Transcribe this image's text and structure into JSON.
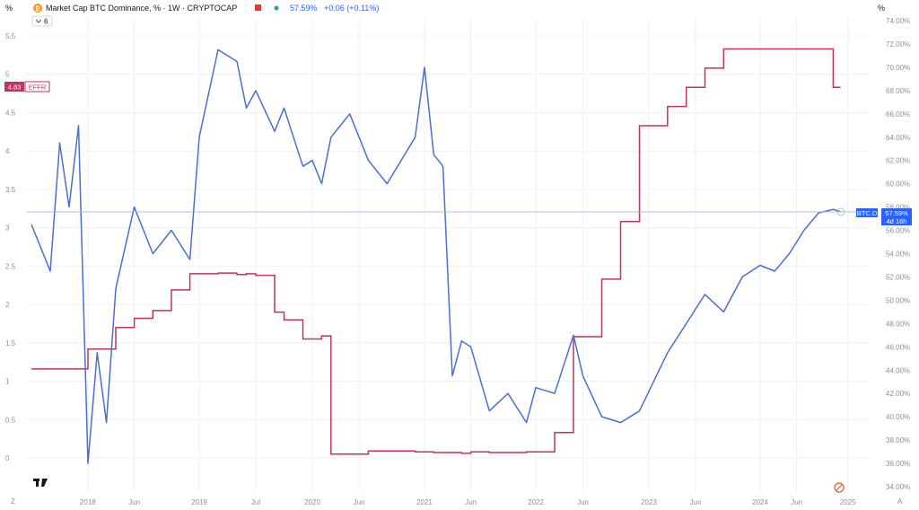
{
  "header": {
    "left_unit": "%",
    "right_unit": "%",
    "title": "Market Cap BTC Dominance, % · 1W · CRYPTOCAP",
    "value": "57.59%",
    "change": "+0.06 (+0.11%)",
    "indicator_count": "6",
    "brand_icon": "bitcoin-coin-icon"
  },
  "colors": {
    "btc": "#4a6fd1",
    "effr": "#c2345a",
    "tag_bg": "#2962ff",
    "grid": "#eef0f4",
    "accent": "#e65a24"
  },
  "tags": {
    "effr_value": "4.83",
    "effr_name": "EFFR",
    "btc_name": "BTC.D",
    "btc_value": "57.59%",
    "btc_countdown": "4d 16h"
  },
  "bottom": {
    "zoom_label": "Z",
    "auto_label": "A"
  },
  "chart_data": {
    "type": "line",
    "title": "Market Cap BTC Dominance, % · 1W · CRYPTOCAP",
    "x_ticks": [
      "2018",
      "Jun",
      "2019",
      "Jul",
      "2020",
      "Jun",
      "2021",
      "Jun",
      "2022",
      "Jun",
      "2023",
      "Jun",
      "2024",
      "Jun",
      "2025"
    ],
    "left_axis": {
      "ticks": [
        "5.5",
        "5",
        "4.5",
        "4",
        "3.5",
        "3",
        "2.5",
        "2",
        "1.5",
        "1",
        "0.5",
        "0"
      ],
      "ylim": [
        0,
        5.5
      ]
    },
    "right_axis": {
      "ticks": [
        "74.00%",
        "72.00%",
        "70.00%",
        "68.00%",
        "66.00%",
        "64.00%",
        "62.00%",
        "60.00%",
        "58.00%",
        "56.00%",
        "54.00%",
        "52.00%",
        "50.00%",
        "48.00%",
        "46.00%",
        "44.00%",
        "42.00%",
        "40.00%",
        "38.00%",
        "36.00%",
        "34.00%"
      ],
      "ylim": [
        34,
        74
      ]
    },
    "x": [
      "2017-07",
      "2017-09",
      "2017-10",
      "2017-11",
      "2017-12",
      "2018-01",
      "2018-02",
      "2018-03",
      "2018-04",
      "2018-06",
      "2018-08",
      "2018-10",
      "2018-12",
      "2019-01",
      "2019-03",
      "2019-05",
      "2019-06",
      "2019-07",
      "2019-09",
      "2019-10",
      "2019-12",
      "2020-01",
      "2020-02",
      "2020-03",
      "2020-05",
      "2020-07",
      "2020-09",
      "2020-12",
      "2021-01",
      "2021-02",
      "2021-03",
      "2021-04",
      "2021-05",
      "2021-06",
      "2021-08",
      "2021-10",
      "2021-12",
      "2022-01",
      "2022-03",
      "2022-05",
      "2022-06",
      "2022-08",
      "2022-10",
      "2022-12",
      "2023-03",
      "2023-05",
      "2023-07",
      "2023-09",
      "2023-11",
      "2024-01",
      "2024-03",
      "2024-05",
      "2024-07",
      "2024-09",
      "2024-11",
      "2024-12"
    ],
    "series": [
      {
        "name": "BTC.D",
        "axis": "right",
        "values": [
          56.5,
          52.5,
          63.5,
          58.0,
          65.0,
          36.0,
          45.5,
          39.5,
          51.0,
          58.0,
          54.0,
          56.0,
          53.5,
          64.0,
          71.5,
          70.5,
          66.5,
          68.0,
          64.5,
          66.5,
          61.5,
          62.0,
          60.0,
          64.0,
          66.0,
          62.0,
          60.0,
          64.0,
          70.0,
          62.5,
          61.5,
          43.5,
          46.5,
          46.0,
          40.5,
          42.0,
          39.5,
          42.5,
          42.0,
          47.0,
          43.5,
          40.0,
          39.5,
          40.5,
          45.5,
          48.0,
          50.5,
          49.0,
          52.0,
          53.0,
          52.5,
          54.0,
          56.0,
          57.5,
          57.8,
          57.6
        ]
      },
      {
        "name": "EFFR",
        "axis": "left",
        "values": [
          1.16,
          1.16,
          1.16,
          1.16,
          1.16,
          1.42,
          1.42,
          1.42,
          1.7,
          1.82,
          1.92,
          2.19,
          2.4,
          2.4,
          2.41,
          2.39,
          2.4,
          2.38,
          1.9,
          1.8,
          1.55,
          1.55,
          1.59,
          0.05,
          0.05,
          0.09,
          0.09,
          0.08,
          0.08,
          0.07,
          0.07,
          0.07,
          0.06,
          0.08,
          0.07,
          0.07,
          0.08,
          0.08,
          0.33,
          1.58,
          1.58,
          2.33,
          3.08,
          4.33,
          4.58,
          4.83,
          5.08,
          5.33,
          5.33,
          5.33,
          5.33,
          5.33,
          5.33,
          5.33,
          4.83,
          4.83
        ]
      }
    ]
  }
}
